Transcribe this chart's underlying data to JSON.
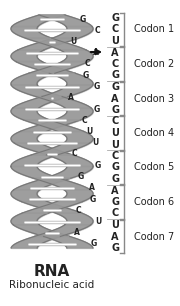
{
  "nucleotides": [
    "G",
    "C",
    "U",
    "A",
    "C",
    "G",
    "G",
    "A",
    "G",
    "C",
    "U",
    "U",
    "C",
    "G",
    "G",
    "A",
    "G",
    "C",
    "U",
    "A",
    "G"
  ],
  "codons": [
    {
      "label": "Codon 1",
      "nts": [
        "G",
        "C",
        "U"
      ]
    },
    {
      "label": "Codon 2",
      "nts": [
        "A",
        "C",
        "G"
      ]
    },
    {
      "label": "Codon 3",
      "nts": [
        "G",
        "A",
        "G"
      ]
    },
    {
      "label": "Codon 4",
      "nts": [
        "C",
        "U",
        "U"
      ]
    },
    {
      "label": "Codon 5",
      "nts": [
        "C",
        "G",
        "G"
      ]
    },
    {
      "label": "Codon 6",
      "nts": [
        "A",
        "G",
        "C"
      ]
    },
    {
      "label": "Codon 7",
      "nts": [
        "U",
        "A",
        "G"
      ]
    }
  ],
  "rna_label": "RNA",
  "subtitle": "Ribonucleic acid",
  "bracket_color": "#888888",
  "separator_color": "#aaaaaa",
  "text_color": "#222222",
  "helix_dark": "#777777",
  "helix_mid": "#999999",
  "helix_light": "#cccccc",
  "rung_color": "#dddddd",
  "bg_color": "#ffffff",
  "arrow_color": "#111111"
}
